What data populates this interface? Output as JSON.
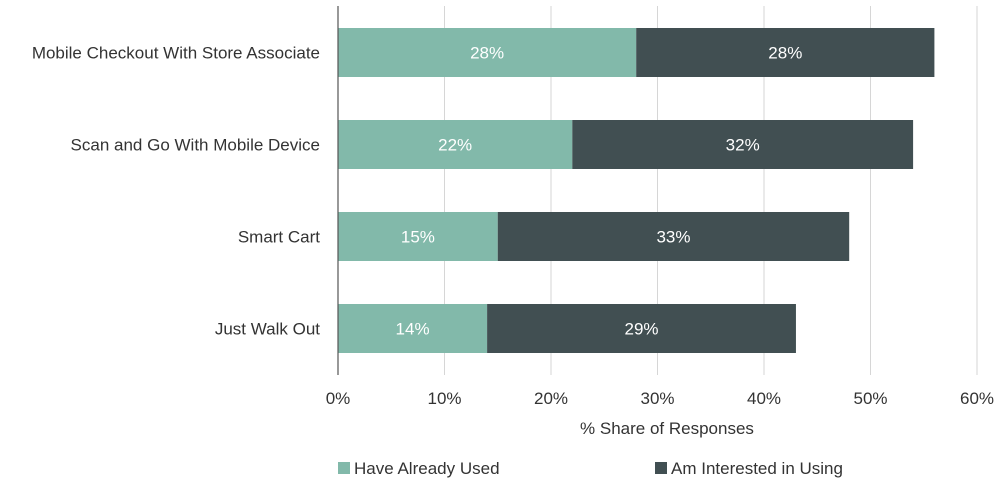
{
  "chart_data": {
    "type": "bar",
    "orientation": "horizontal",
    "stacked": true,
    "categories": [
      "Mobile Checkout With Store Associate",
      "Scan and Go With Mobile Device",
      "Smart Cart",
      "Just Walk Out"
    ],
    "series": [
      {
        "name": "Have Already Used",
        "values": [
          28,
          22,
          15,
          14
        ],
        "labels": [
          "28%",
          "22%",
          "15%",
          "14%"
        ],
        "color": "#82b9aa"
      },
      {
        "name": "Am Interested in Using",
        "values": [
          28,
          32,
          33,
          29
        ],
        "labels": [
          "28%",
          "32%",
          "33%",
          "29%"
        ],
        "color": "#414f52"
      }
    ],
    "xlabel": "% Share of Responses",
    "xlim": [
      0,
      60
    ],
    "xticks": [
      0,
      10,
      20,
      30,
      40,
      50,
      60
    ],
    "xtick_labels": [
      "0%",
      "10%",
      "20%",
      "30%",
      "40%",
      "50%",
      "60%"
    ],
    "grid": "vertical",
    "legend_position": "bottom"
  }
}
